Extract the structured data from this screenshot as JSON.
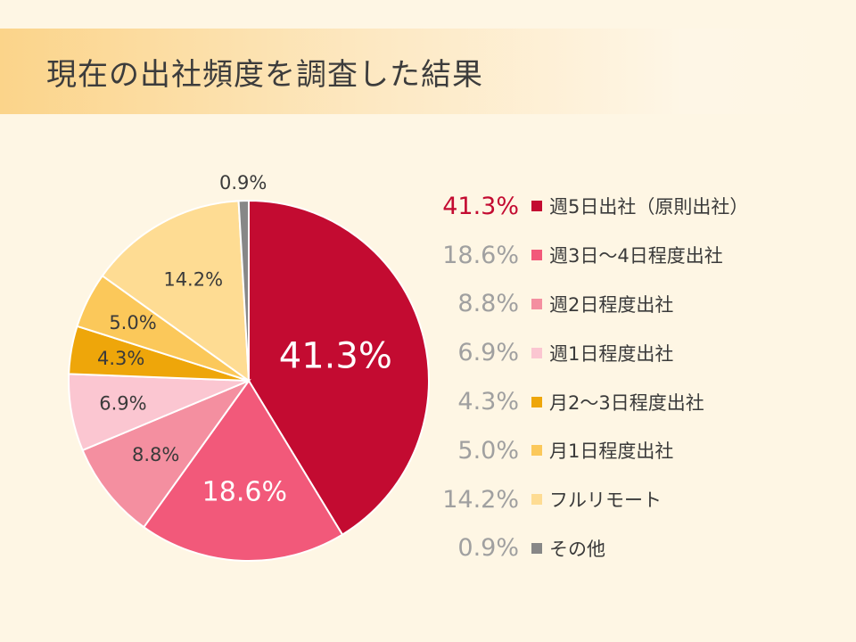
{
  "header": {
    "title": "現在の出社頻度を調査した結果"
  },
  "chart_data": {
    "type": "pie",
    "title": "現在の出社頻度を調査した結果",
    "start_angle": "12 o'clock, clockwise",
    "slices": [
      {
        "label": "週5日出社（原則出社）",
        "value": 41.3,
        "value_label": "41.3%",
        "color": "#c30b31"
      },
      {
        "label": "週3日〜4日程度出社",
        "value": 18.6,
        "value_label": "18.6%",
        "color": "#f2597a"
      },
      {
        "label": "週2日程度出社",
        "value": 8.8,
        "value_label": "8.8%",
        "color": "#f48fa0"
      },
      {
        "label": "週1日程度出社",
        "value": 6.9,
        "value_label": "6.9%",
        "color": "#fbc6d1"
      },
      {
        "label": "月2〜3日程度出社",
        "value": 4.3,
        "value_label": "4.3%",
        "color": "#eea60a"
      },
      {
        "label": "月1日程度出社",
        "value": 5.0,
        "value_label": "5.0%",
        "color": "#fbc85a"
      },
      {
        "label": "フルリモート",
        "value": 14.2,
        "value_label": "14.2%",
        "color": "#fedc93"
      },
      {
        "label": "その他",
        "value": 0.9,
        "value_label": "0.9%",
        "color": "#878787"
      }
    ],
    "legend_position": "right",
    "highlight_color": "#c30b31"
  }
}
